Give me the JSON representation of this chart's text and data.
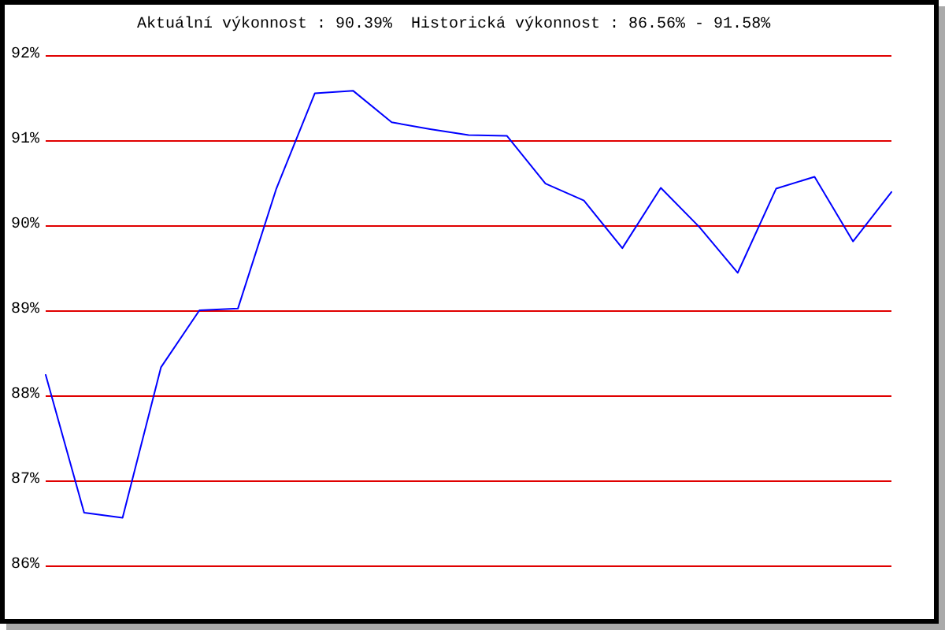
{
  "chart_data": {
    "type": "line",
    "title": "Aktuální výkonnost : 90.39%  Historická výkonnost : 86.56% - 91.58%",
    "categories": [
      null,
      null,
      null,
      null,
      null,
      null,
      null,
      null,
      null,
      null,
      null,
      null,
      null,
      null,
      null,
      null,
      null,
      null,
      null,
      null,
      null,
      null,
      null
    ],
    "series": [
      {
        "color": "#0000ff",
        "values": [
          88.24,
          86.62,
          86.56,
          88.33,
          89.0,
          89.02,
          90.43,
          91.55,
          91.58,
          91.21,
          91.13,
          91.06,
          91.05,
          90.49,
          90.29,
          89.73,
          90.44,
          89.98,
          89.44,
          90.43,
          90.57,
          89.81,
          90.39
        ]
      }
    ],
    "ylim": [
      86,
      92
    ],
    "yticks": [
      {
        "value": 86,
        "label": "86%"
      },
      {
        "value": 87,
        "label": "87%"
      },
      {
        "value": 88,
        "label": "88%"
      },
      {
        "value": 89,
        "label": "89%"
      },
      {
        "value": 90,
        "label": "90%"
      },
      {
        "value": 91,
        "label": "91%"
      },
      {
        "value": 92,
        "label": "92%"
      }
    ],
    "grid": "y",
    "tick_labels": "y",
    "marker": "none"
  }
}
